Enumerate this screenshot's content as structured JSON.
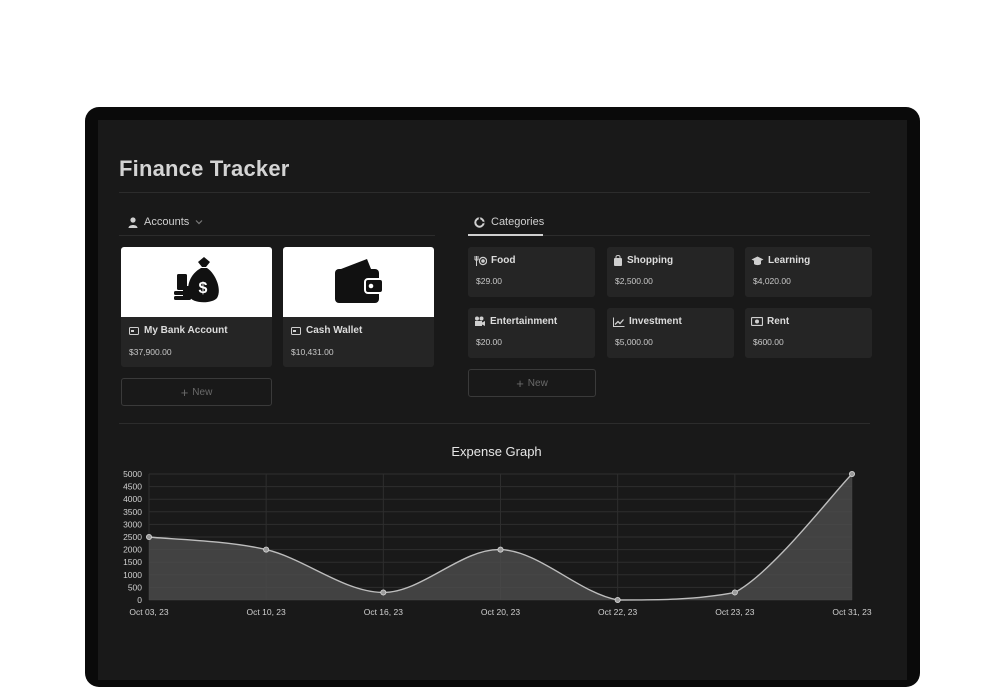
{
  "page": {
    "title": "Finance Tracker"
  },
  "accounts": {
    "header": "Accounts",
    "items": [
      {
        "name": "My Bank Account",
        "value": "$37,900.00",
        "icon": "money-bag-icon"
      },
      {
        "name": "Cash Wallet",
        "value": "$10,431.00",
        "icon": "wallet-icon"
      }
    ],
    "new_label": "New"
  },
  "categories": {
    "header": "Categories",
    "items": [
      {
        "name": "Food",
        "value": "$29.00",
        "icon": "food-icon"
      },
      {
        "name": "Shopping",
        "value": "$2,500.00",
        "icon": "shopping-bag-icon"
      },
      {
        "name": "Learning",
        "value": "$4,020.00",
        "icon": "graduation-cap-icon"
      },
      {
        "name": "Entertainment",
        "value": "$20.00",
        "icon": "camera-icon"
      },
      {
        "name": "Investment",
        "value": "$5,000.00",
        "icon": "trend-up-icon"
      },
      {
        "name": "Rent",
        "value": "$600.00",
        "icon": "cash-icon"
      }
    ],
    "new_label": "New"
  },
  "chart_data": {
    "type": "area",
    "title": "Expense Graph",
    "x": [
      "Oct 03, 23",
      "Oct 10, 23",
      "Oct 16, 23",
      "Oct 20, 23",
      "Oct 22, 23",
      "Oct 23, 23",
      "Oct 31, 23"
    ],
    "series": [
      {
        "values": [
          2500,
          2000,
          300,
          2000,
          0,
          300,
          5000
        ]
      }
    ],
    "ylim": [
      0,
      5000
    ],
    "yticks": [
      0,
      500,
      1000,
      1500,
      2000,
      2500,
      3000,
      3500,
      4000,
      4500,
      5000
    ],
    "grid": true
  }
}
